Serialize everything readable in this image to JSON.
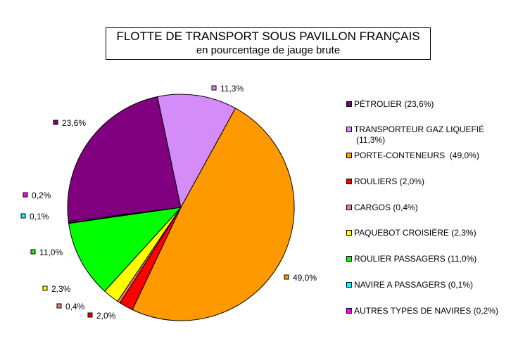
{
  "title": "FLOTTE DE TRANSPORT SOUS PAVILLON FRANÇAIS",
  "subtitle": "en pourcentage de jauge brute",
  "chart_data": {
    "type": "pie",
    "title": "FLOTTE DE TRANSPORT SOUS PAVILLON FRANÇAIS",
    "subtitle": "en pourcentage de jauge brute",
    "legend_position": "right",
    "slices": [
      {
        "legend": "PÉTROLIER (23,6%)",
        "value": 23.6,
        "label": "23,6%",
        "color": "#800080"
      },
      {
        "legend": "TRANSPORTEUR GAZ LIQUEFIÉ (11,3%)",
        "legend_line1": "TRANSPORTEUR GAZ LIQUEFIÉ",
        "legend_line2": "(11,3%)",
        "value": 11.3,
        "label": "11,3%",
        "color": "#d48cf8"
      },
      {
        "legend": "PORTE-CONTENEURS  (49,0%)",
        "value": 49.0,
        "label": "49,0%",
        "color": "#ff9900"
      },
      {
        "legend": "ROULIERS (2,0%)",
        "value": 2.0,
        "label": "2,0%",
        "color": "#ff0000"
      },
      {
        "legend": "CARGOS (0,4%)",
        "value": 0.4,
        "label": "0,4%",
        "color": "#f08080"
      },
      {
        "legend": "PAQUEBOT CROISIÈRE (2,3%)",
        "value": 2.3,
        "label": "2,3%",
        "color": "#ffff00"
      },
      {
        "legend": "ROULIER PASSAGERS (11,0%)",
        "value": 11.0,
        "label": "11,0%",
        "color": "#00ff00"
      },
      {
        "legend": "NAVIRE A PASSAGERS (0,1%)",
        "value": 0.1,
        "label": "0,1%",
        "color": "#00ffff"
      },
      {
        "legend": "AUTRES TYPES DE NAVIRES (0,2%)",
        "value": 0.2,
        "label": "0,2%",
        "color": "#ff00ff"
      }
    ]
  }
}
